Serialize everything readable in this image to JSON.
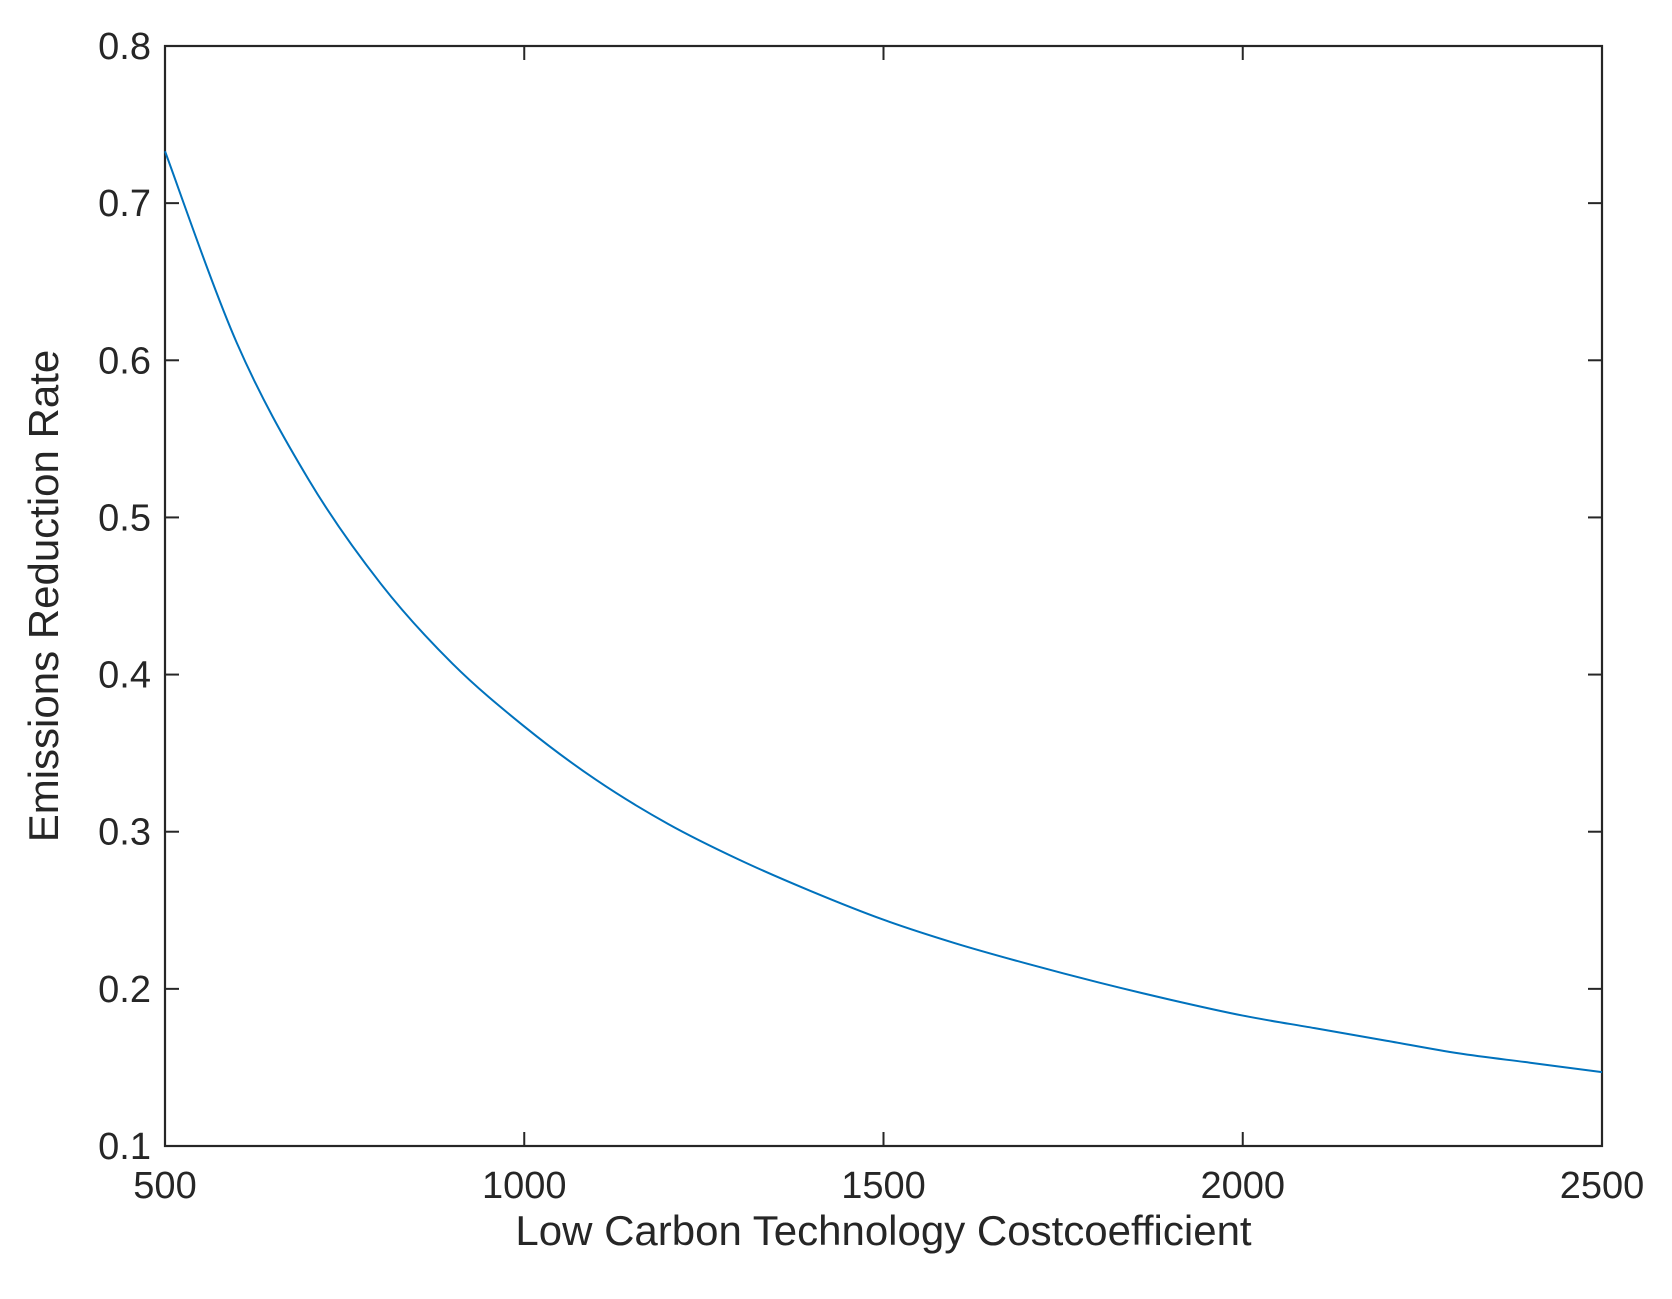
{
  "chart_data": {
    "type": "line",
    "title": "",
    "xlabel": "Low Carbon Technology Costcoefficient",
    "ylabel": "Emissions Reduction Rate",
    "xlim": [
      500,
      2500
    ],
    "ylim": [
      0.1,
      0.8
    ],
    "x_ticks": [
      500,
      1000,
      1500,
      2000,
      2500
    ],
    "x_tick_labels": [
      "500",
      "1000",
      "1500",
      "2000",
      "2500"
    ],
    "y_ticks": [
      0.1,
      0.2,
      0.3,
      0.4,
      0.5,
      0.6,
      0.7,
      0.8
    ],
    "y_tick_labels": [
      "0.1",
      "0.2",
      "0.3",
      "0.4",
      "0.5",
      "0.6",
      "0.7",
      "0.8"
    ],
    "grid": false,
    "box": true,
    "series": [
      {
        "color": "#0072BD",
        "x": [
          500,
          600,
          700,
          800,
          900,
          1000,
          1100,
          1200,
          1300,
          1400,
          1500,
          1600,
          1700,
          1800,
          1900,
          2000,
          2100,
          2200,
          2300,
          2400,
          2500
        ],
        "y": [
          0.733,
          0.611,
          0.524,
          0.458,
          0.407,
          0.367,
          0.333,
          0.305,
          0.282,
          0.262,
          0.244,
          0.229,
          0.216,
          0.204,
          0.193,
          0.183,
          0.175,
          0.167,
          0.159,
          0.153,
          0.147
        ]
      }
    ]
  }
}
